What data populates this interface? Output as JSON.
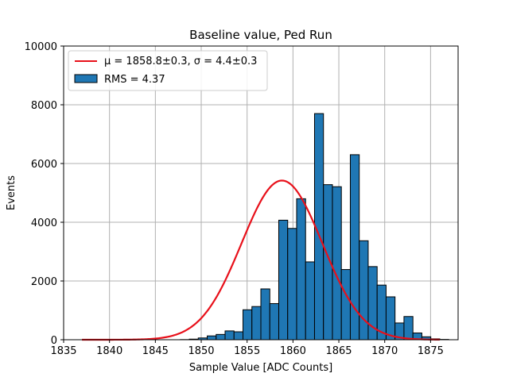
{
  "chart_data": {
    "type": "bar",
    "title": "Baseline value, Ped Run",
    "xlabel": "Sample Value [ADC Counts]",
    "ylabel": "Events",
    "xlim": [
      1835,
      1878
    ],
    "ylim": [
      0,
      10000
    ],
    "xticks": [
      1835,
      1840,
      1845,
      1850,
      1855,
      1860,
      1865,
      1870,
      1875
    ],
    "yticks": [
      0,
      2000,
      4000,
      6000,
      8000,
      10000
    ],
    "grid": true,
    "legend_position": "top-left",
    "histogram": {
      "name": "RMS = 4.37",
      "color": "#1f77b4",
      "edge_color": "#000000",
      "bin_width": 0.975,
      "bin_start": 1837,
      "counts": [
        0,
        0,
        0,
        0,
        0,
        0,
        0,
        0,
        0,
        0,
        0,
        5,
        20,
        60,
        130,
        180,
        300,
        270,
        1020,
        1130,
        1730,
        1230,
        4070,
        3790,
        4800,
        2650,
        7700,
        5280,
        5210,
        2390,
        6300,
        3370,
        2490,
        1860,
        1460,
        570,
        790,
        230,
        100,
        30,
        10,
        0,
        0,
        0,
        0,
        0
      ]
    },
    "fit": {
      "name": "$\\mu = 1858.8\\pm0.3, \\sigma = 4.4\\pm0.3$",
      "label_mu": "μ = 1858.8±0.3, ",
      "label_sigma": "σ = 4.4±0.3",
      "color": "#e8101a",
      "mu": 1858.8,
      "sigma": 4.4,
      "amplitude": 5420,
      "x_range": [
        1837,
        1876
      ]
    }
  }
}
